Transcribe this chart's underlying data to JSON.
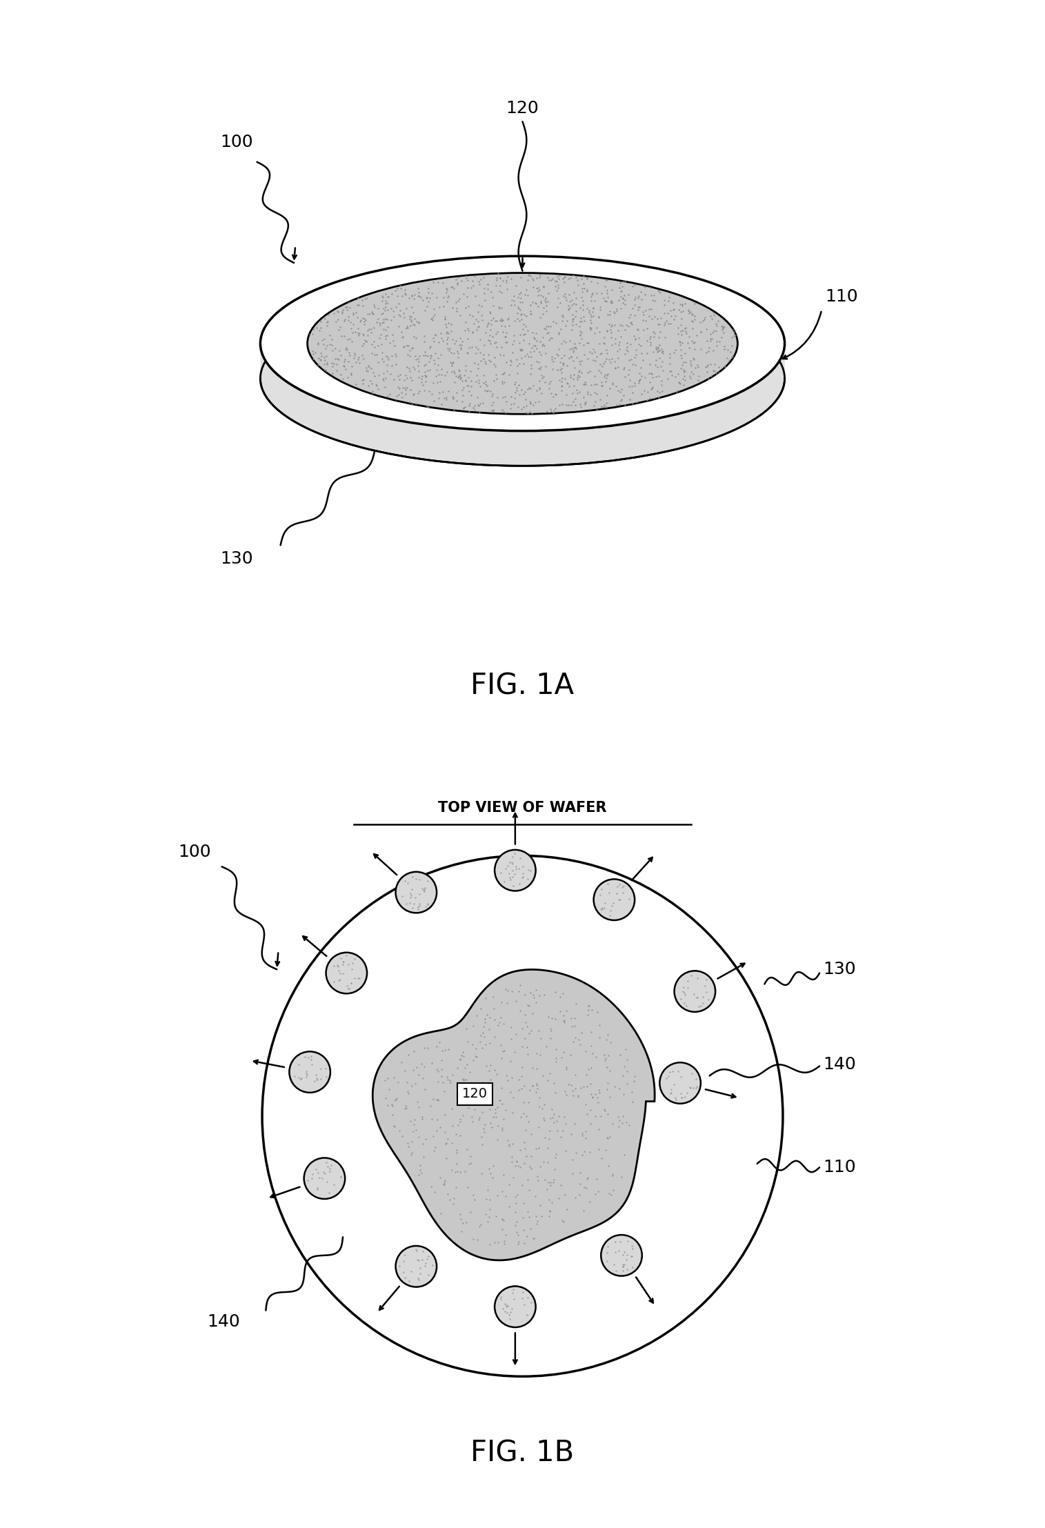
{
  "bg_color": "#ffffff",
  "line_color": "#000000",
  "fig_width": 15.15,
  "fig_height": 22.15,
  "fig1a_label": "FIG. 1A",
  "fig1b_label": "FIG. 1B",
  "fig1b_subtitle": "TOP VIEW OF WAFER",
  "labels": {
    "100": "100",
    "110": "110",
    "120": "120",
    "130": "130",
    "140": "140"
  },
  "stipple_color": "#888888",
  "wafer_surface_color": "#c8c8c8",
  "wafer_edge_color": "#e8e8e8",
  "particle_fill": "#cccccc"
}
